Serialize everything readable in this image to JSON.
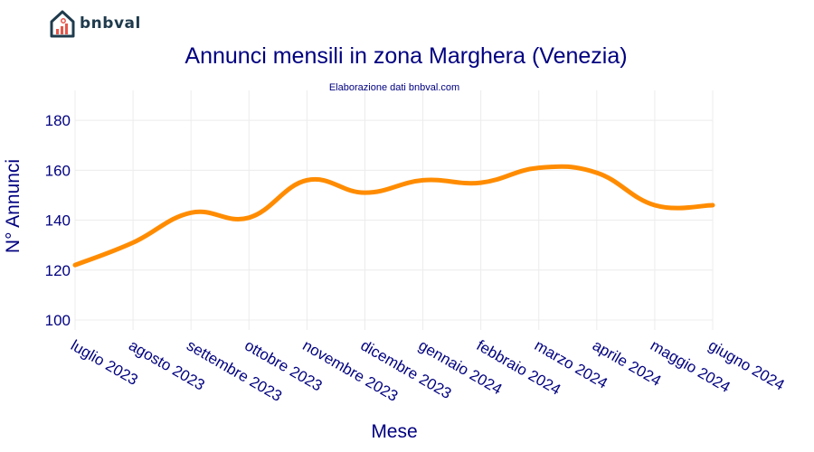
{
  "brand": {
    "name": "bnbval"
  },
  "colors": {
    "line": "#ff8c00",
    "title": "#000080",
    "grid": "#ececec",
    "logo_house": "#1f3b4d",
    "logo_accent": "#e8564a"
  },
  "chart_data": {
    "type": "line",
    "title": "Annunci mensili in zona Marghera (Venezia)",
    "subtitle": "Elaborazione dati bnbval.com",
    "xlabel": "Mese",
    "ylabel": "N° Annunci",
    "categories": [
      "luglio 2023",
      "agosto 2023",
      "settembre 2023",
      "ottobre 2023",
      "novembre 2023",
      "dicembre 2023",
      "gennaio 2024",
      "febbraio 2024",
      "marzo 2024",
      "aprile 2024",
      "maggio 2024",
      "giugno 2024"
    ],
    "series": [
      {
        "values": [
          122,
          131,
          143,
          141,
          156,
          151,
          156,
          155,
          161,
          159,
          146,
          146
        ]
      }
    ],
    "ylim": [
      96,
      192
    ],
    "yticks": [
      100,
      120,
      140,
      160,
      180
    ],
    "grid": true,
    "smooth": true
  }
}
